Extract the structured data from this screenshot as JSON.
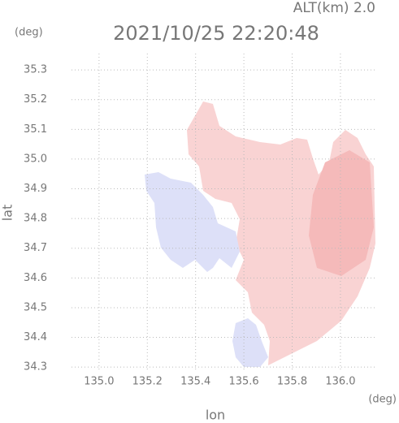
{
  "chart_data": {
    "type": "map",
    "title": "2021/10/25 22:20:48",
    "subtitle": "ALT(km) 2.0",
    "x_label": "lon",
    "x_unit": "(deg)",
    "y_label": "lat",
    "y_unit": "(deg)",
    "xlim": [
      134.886,
      136.145
    ],
    "ylim": [
      34.284,
      35.355
    ],
    "xticks": [
      {
        "value": 135,
        "label": "135.0"
      },
      135.2,
      135.4,
      135.6,
      135.8,
      {
        "value": 136,
        "label": "136.0"
      }
    ],
    "yticks": [
      34.3,
      34.4,
      34.5,
      34.6,
      34.7,
      34.8,
      34.9,
      {
        "value": 35,
        "label": "35.0"
      },
      35.1,
      35.2,
      35.3
    ],
    "grid": true
  }
}
